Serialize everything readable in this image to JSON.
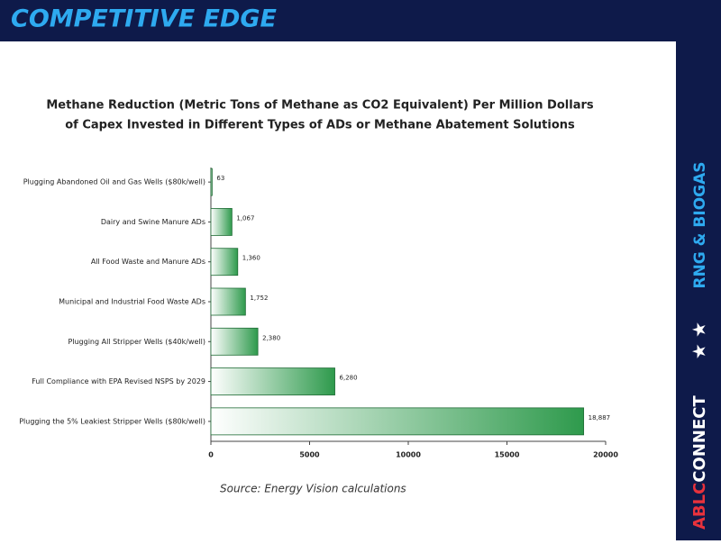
{
  "header": {
    "title": "COMPETITIVE EDGE"
  },
  "sidebar": {
    "section": "RNG & BIOGAS",
    "brand_1": "ABLC",
    "brand_2": "CONNECT"
  },
  "chart_data": {
    "type": "bar",
    "orientation": "horizontal",
    "title": [
      "Methane Reduction (Metric Tons of Methane as CO2 Equivalent) Per Million Dollars",
      "of Capex Invested in Different Types of ADs or Methane Abatement Solutions"
    ],
    "categories": [
      "Plugging Abandoned Oil and Gas Wells ($80k/well)",
      "Dairy and Swine Manure ADs",
      "All Food Waste and Manure ADs",
      "Municipal and Industrial Food Waste ADs",
      "Plugging All Stripper Wells ($40k/well)",
      "Full Compliance with EPA Revised NSPS by 2029",
      "Plugging the 5% Leakiest Stripper Wells ($80k/well)"
    ],
    "values": [
      63,
      1067,
      1360,
      1752,
      2380,
      6280,
      18887
    ],
    "value_labels": [
      "63",
      "1,067",
      "1,360",
      "1,752",
      "2,380",
      "6,280",
      "18,887"
    ],
    "color": "#2e9a4c",
    "xlim": [
      0,
      20000
    ],
    "xticks": [
      0,
      5000,
      10000,
      15000,
      20000
    ],
    "grid": false
  },
  "source": "Source: Energy Vision calculations"
}
